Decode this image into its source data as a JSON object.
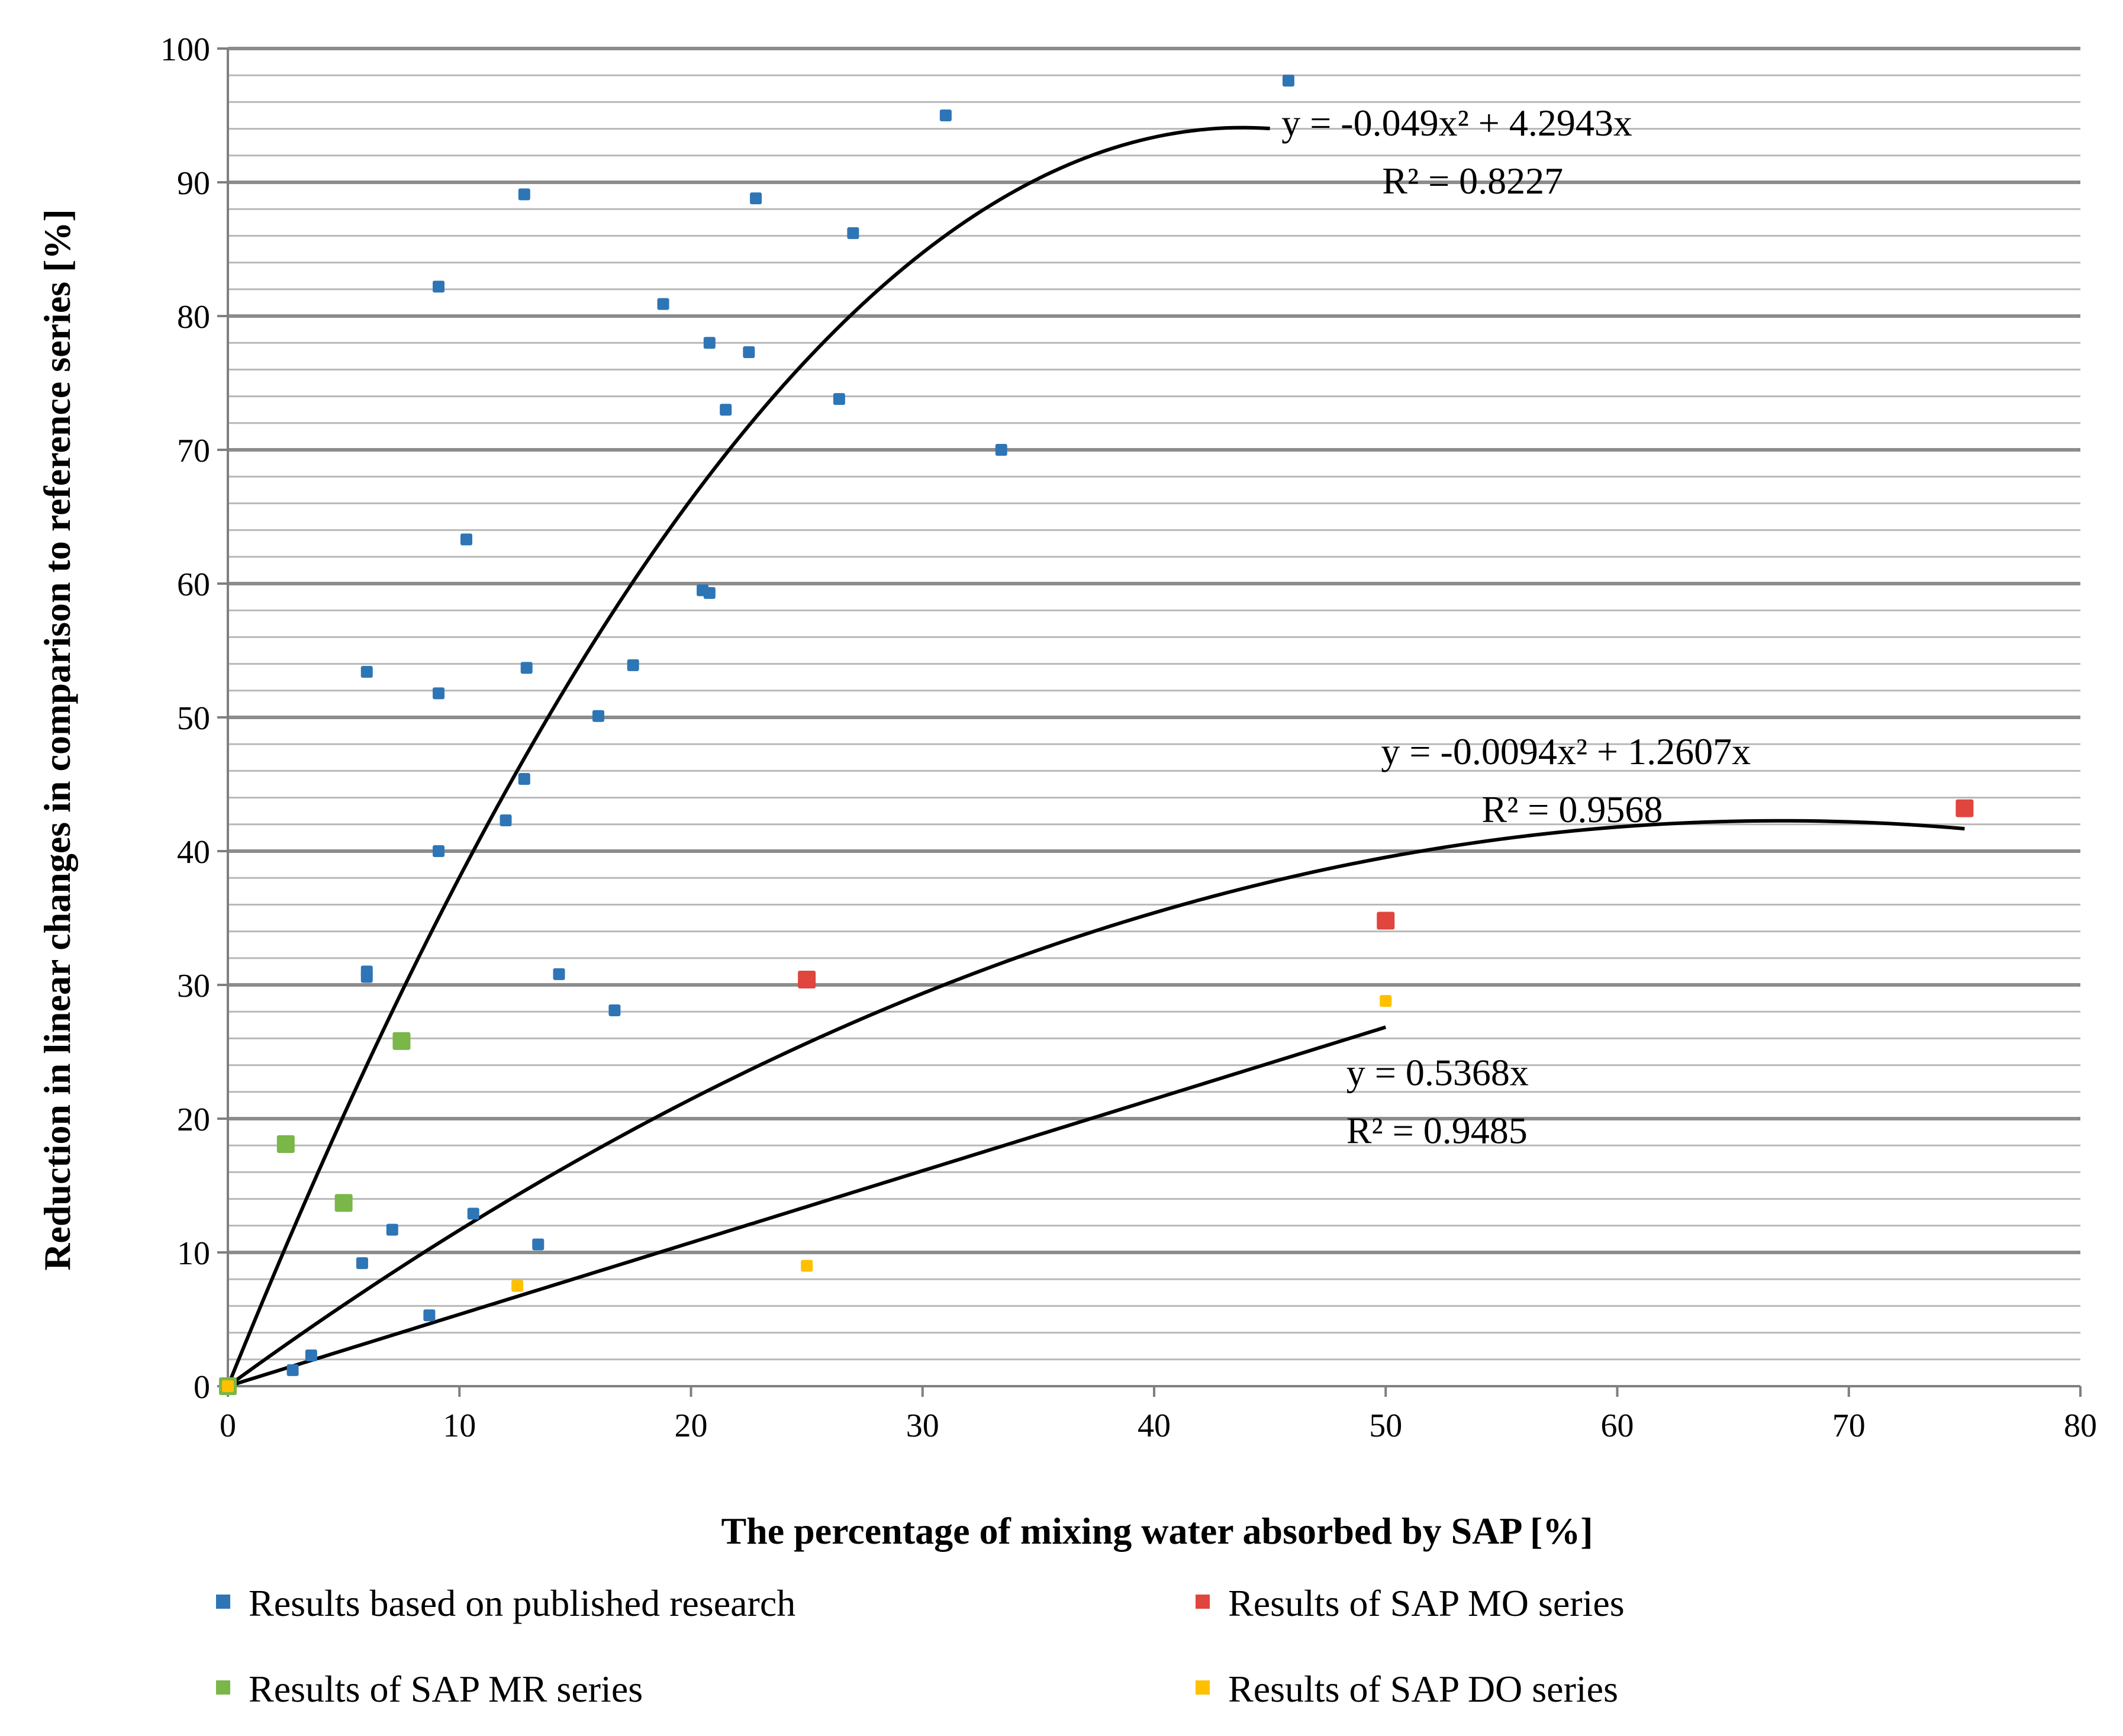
{
  "chart_data": {
    "type": "scatter",
    "title": "",
    "xlabel": "The percentage of mixing water absorbed by SAP [%]",
    "ylabel": "Reduction in linear changes in comparison to reference series [%]",
    "xlim": [
      0,
      80
    ],
    "ylim": [
      0,
      100
    ],
    "x_ticks": [
      0,
      10,
      20,
      30,
      40,
      50,
      60,
      70,
      80
    ],
    "y_ticks": [
      0,
      10,
      20,
      30,
      40,
      50,
      60,
      70,
      80,
      90,
      100
    ],
    "minor_grid_step": 2,
    "grid": true,
    "legend_position": "bottom",
    "series": [
      {
        "name": "Results based on published research",
        "color": "#2E75B6",
        "marker_size": "small",
        "points": [
          [
            0,
            0
          ],
          [
            2.8,
            1.2
          ],
          [
            3.6,
            2.3
          ],
          [
            5.8,
            9.2
          ],
          [
            6.0,
            53.4
          ],
          [
            6.0,
            31.0
          ],
          [
            6.0,
            30.6
          ],
          [
            7.1,
            11.7
          ],
          [
            8.7,
            5.3
          ],
          [
            9.1,
            82.2
          ],
          [
            9.1,
            51.8
          ],
          [
            9.1,
            40.0
          ],
          [
            10.3,
            63.3
          ],
          [
            10.6,
            12.9
          ],
          [
            12.0,
            42.3
          ],
          [
            12.8,
            89.1
          ],
          [
            12.8,
            45.4
          ],
          [
            12.9,
            53.7
          ],
          [
            13.4,
            10.6
          ],
          [
            14.3,
            30.8
          ],
          [
            16.0,
            50.1
          ],
          [
            16.7,
            28.1
          ],
          [
            17.5,
            53.9
          ],
          [
            18.8,
            80.9
          ],
          [
            20.5,
            59.5
          ],
          [
            20.8,
            59.3
          ],
          [
            20.8,
            78.0
          ],
          [
            21.5,
            73.0
          ],
          [
            22.5,
            77.3
          ],
          [
            22.8,
            88.8
          ],
          [
            26.4,
            73.8
          ],
          [
            27.0,
            86.2
          ],
          [
            31.0,
            95.0
          ],
          [
            33.4,
            70.0
          ],
          [
            45.8,
            97.6
          ]
        ]
      },
      {
        "name": "Results of SAP MO series",
        "color": "#E0453E",
        "marker_size": "large",
        "points": [
          [
            25,
            30.4
          ],
          [
            50,
            34.8
          ],
          [
            75,
            43.2
          ]
        ]
      },
      {
        "name": "Results of SAP MR series",
        "color": "#7AB648",
        "marker_size": "large",
        "points": [
          [
            0,
            0
          ],
          [
            2.5,
            18.1
          ],
          [
            5.0,
            13.7
          ],
          [
            7.5,
            25.8
          ]
        ]
      },
      {
        "name": "Results of SAP DO series",
        "color": "#FFC000",
        "marker_size": "small",
        "points": [
          [
            0,
            0
          ],
          [
            12.5,
            7.5
          ],
          [
            25,
            9.0
          ],
          [
            50,
            28.8
          ]
        ]
      }
    ],
    "trendlines": [
      {
        "a": -0.049,
        "b": 4.2943,
        "x_range": [
          0,
          45
        ],
        "equation": "y = -0.049x² + 4.2943x",
        "r2": "R² = 0.8227",
        "label_anchor": [
          45.5,
          93.5
        ]
      },
      {
        "a": -0.0094,
        "b": 1.2607,
        "x_range": [
          0,
          75
        ],
        "equation": "y = -0.0094x² + 1.2607x",
        "r2": "R² = 0.9568",
        "label_anchor": [
          49.8,
          46.5
        ]
      },
      {
        "a": 0,
        "b": 0.5368,
        "x_range": [
          0,
          50
        ],
        "equation": "y = 0.5368x",
        "r2": "R² = 0.9485",
        "label_anchor": [
          48.3,
          22.5
        ]
      }
    ]
  }
}
